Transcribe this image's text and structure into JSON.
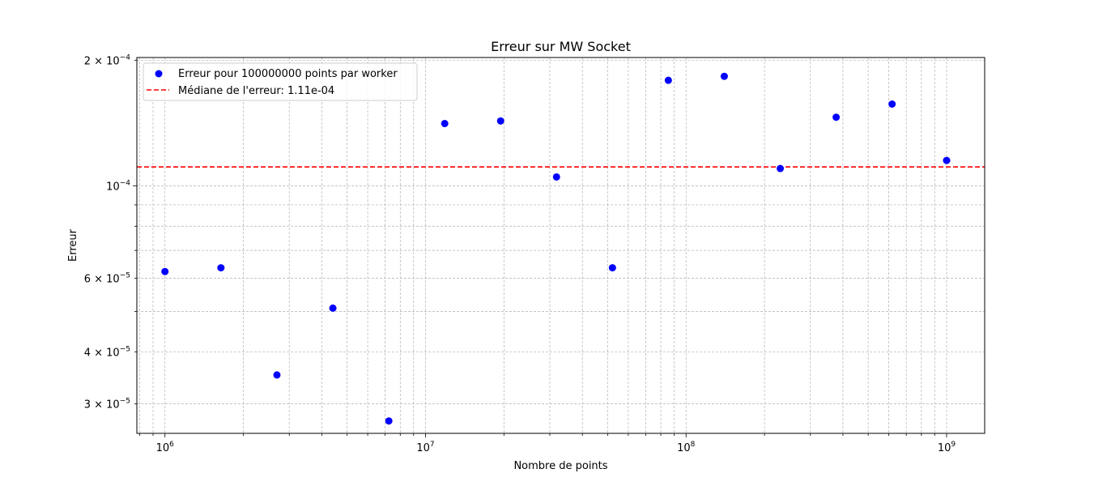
{
  "chart_data": {
    "type": "scatter",
    "title": "Erreur sur MW Socket",
    "xlabel": "Nombre de points",
    "ylabel": "Erreur",
    "xscale": "log",
    "yscale": "log",
    "xlim": [
      780000,
      1400000000
    ],
    "ylim": [
      2.55e-05,
      0.000203
    ],
    "grid": true,
    "legend_position": "top-left",
    "colors": {
      "points": "#0000ff",
      "median": "#ff0000",
      "grid": "#b0b0b0"
    },
    "x_tick_labels": [
      {
        "value": 1000000,
        "base": "10",
        "exp": "6"
      },
      {
        "value": 10000000,
        "base": "10",
        "exp": "7"
      },
      {
        "value": 100000000,
        "base": "10",
        "exp": "8"
      },
      {
        "value": 1000000000,
        "base": "10",
        "exp": "9"
      }
    ],
    "y_tick_labels": [
      {
        "value": 0.0002,
        "mant": "2",
        "base": "10",
        "exp": "−4"
      },
      {
        "value": 0.0001,
        "mant": "",
        "base": "10",
        "exp": "−4"
      },
      {
        "value": 6e-05,
        "mant": "6",
        "base": "10",
        "exp": "−5"
      },
      {
        "value": 4e-05,
        "mant": "4",
        "base": "10",
        "exp": "−5"
      },
      {
        "value": 3e-05,
        "mant": "3",
        "base": "10",
        "exp": "−5"
      }
    ],
    "series": [
      {
        "name": "Erreur pour 100000000 points par worker",
        "kind": "scatter",
        "x": [
          1000000,
          1640000,
          2690000,
          4410000,
          7230000,
          11850000,
          19420000,
          31830000,
          52180000,
          85500000,
          140200000,
          229900000,
          376800000,
          617700000,
          1000000000
        ],
        "y": [
          6.23e-05,
          6.36e-05,
          3.52e-05,
          5.09e-05,
          2.73e-05,
          0.000141,
          0.000143,
          0.000105,
          6.36e-05,
          0.000179,
          0.000183,
          0.00011,
          0.000146,
          0.000157,
          0.000115
        ]
      },
      {
        "name": "Médiane de l'erreur: 1.11e-04",
        "kind": "hline",
        "y": 0.000111
      }
    ]
  }
}
